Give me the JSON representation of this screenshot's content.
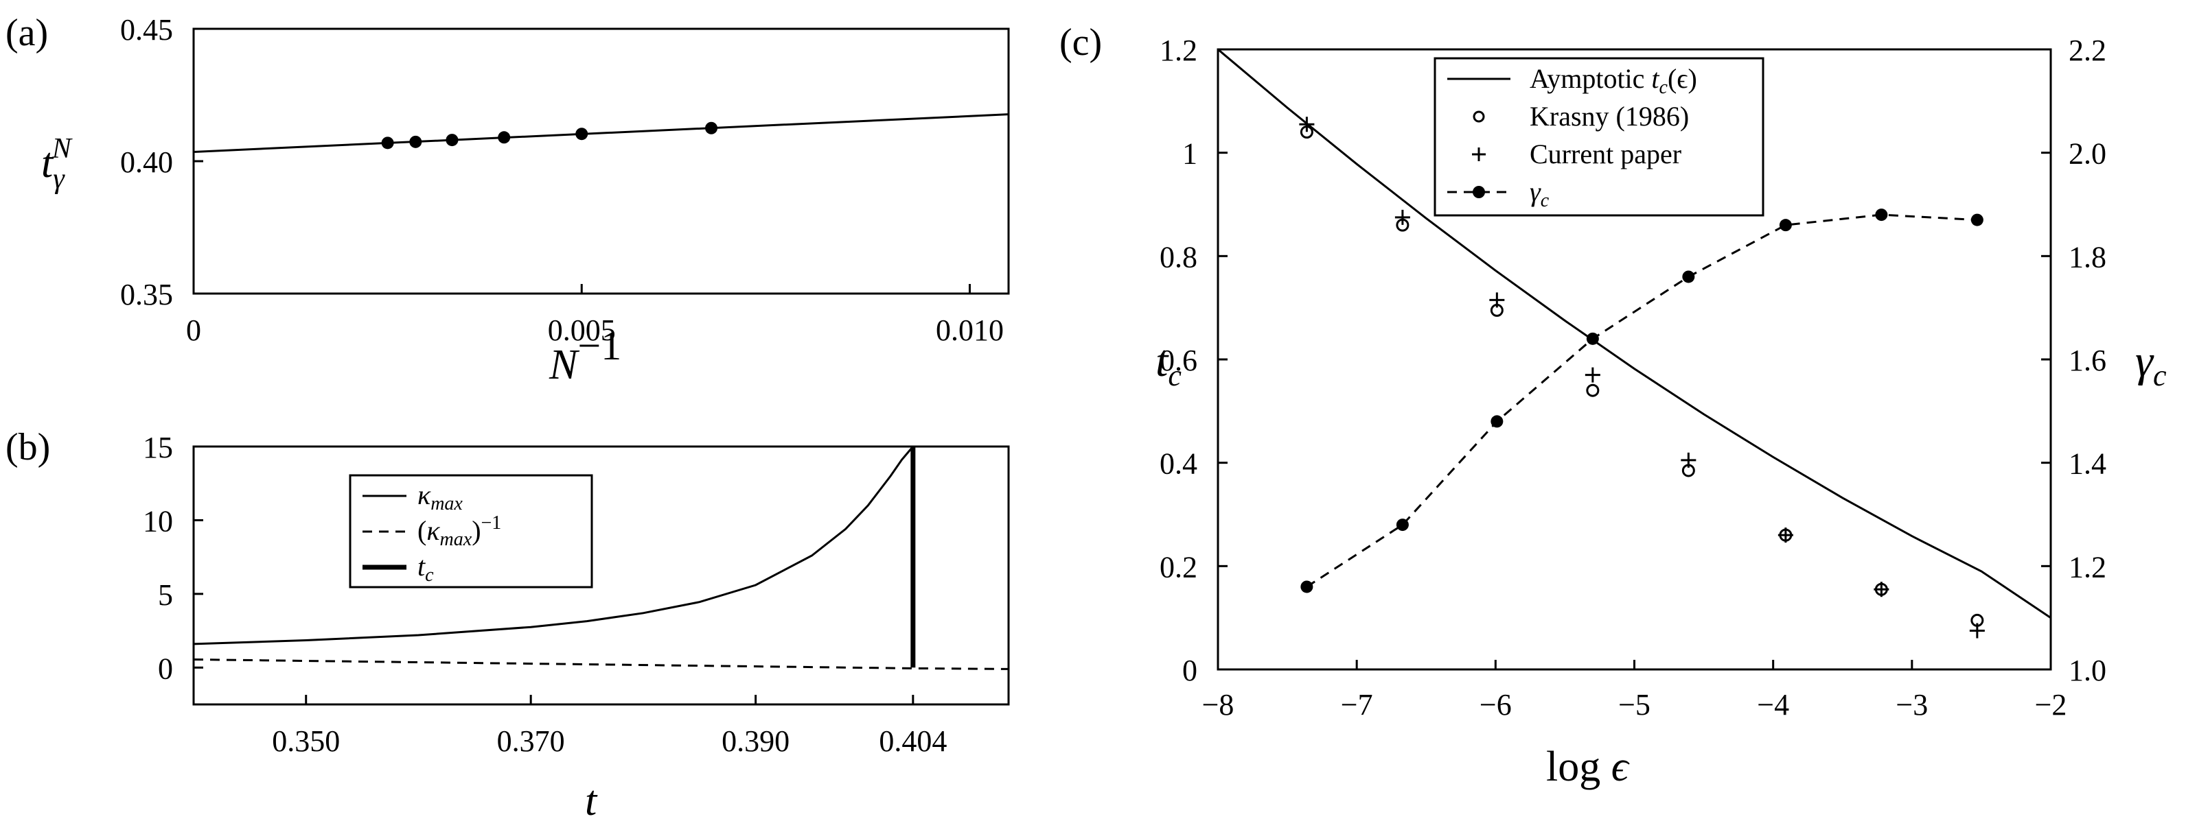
{
  "chart_data": [
    {
      "id": "a",
      "type": "scatter",
      "panel_label": "(a)",
      "xlabel": "N^{-1}",
      "ylabel": "t_γ^N",
      "xlim": [
        0,
        0.0105
      ],
      "ylim": [
        0.35,
        0.45
      ],
      "xticks": [
        {
          "value": 0,
          "label": "0"
        },
        {
          "value": 0.005,
          "label": "0.005"
        },
        {
          "value": 0.01,
          "label": "0.010"
        }
      ],
      "yticks": [
        {
          "value": 0.35,
          "label": "0.35"
        },
        {
          "value": 0.4,
          "label": "0.40"
        },
        {
          "value": 0.45,
          "label": "0.45"
        }
      ],
      "fit_line": {
        "x": [
          0,
          0.0105
        ],
        "y": [
          0.4035,
          0.4177
        ]
      },
      "points": {
        "x": [
          0.0025,
          0.00286,
          0.00333,
          0.004,
          0.005,
          0.00667
        ],
        "y": [
          0.4069,
          0.4073,
          0.408,
          0.409,
          0.4103,
          0.4125
        ]
      }
    },
    {
      "id": "b",
      "type": "line",
      "panel_label": "(b)",
      "xlabel": "t",
      "xlim": [
        0.34,
        0.4125
      ],
      "ylim": [
        -2.5,
        15
      ],
      "xticks": [
        {
          "value": 0.35,
          "label": "0.350"
        },
        {
          "value": 0.37,
          "label": "0.370"
        },
        {
          "value": 0.39,
          "label": "0.390"
        },
        {
          "value": 0.404,
          "label": "0.404"
        }
      ],
      "yticks": [
        {
          "value": 0,
          "label": "0"
        },
        {
          "value": 5,
          "label": "5"
        },
        {
          "value": 10,
          "label": "10"
        },
        {
          "value": 15,
          "label": "15"
        }
      ],
      "legend": {
        "position": "top-center",
        "entries": [
          {
            "label": "κ_max",
            "style": "solid"
          },
          {
            "label": "(κ_max)^{-1}",
            "style": "dashed"
          },
          {
            "label": "t_c",
            "style": "thick"
          }
        ]
      },
      "series": [
        {
          "name": "κ_max",
          "x": [
            0.34,
            0.35,
            0.36,
            0.37,
            0.375,
            0.38,
            0.385,
            0.39,
            0.395,
            0.398,
            0.4,
            0.402,
            0.403,
            0.404
          ],
          "y": [
            1.6,
            1.85,
            2.2,
            2.75,
            3.15,
            3.7,
            4.45,
            5.6,
            7.6,
            9.4,
            11.0,
            13.0,
            14.1,
            15.0
          ]
        },
        {
          "name": "(κ_max)^{-1}",
          "x": [
            0.34,
            0.404,
            0.4125
          ],
          "y": [
            0.55,
            -0.05,
            -0.1
          ]
        }
      ],
      "vline": {
        "name": "t_c",
        "x": 0.404,
        "y": [
          0,
          15
        ]
      }
    },
    {
      "id": "c",
      "type": "line",
      "panel_label": "(c)",
      "xlabel": "log ϵ",
      "ylabel": "t_c",
      "ylabel_right": "γ_c",
      "xlim": [
        -8,
        -2
      ],
      "ylim": [
        0,
        1.2
      ],
      "ylim_right": [
        1.0,
        2.2
      ],
      "xticks": [
        {
          "value": -8,
          "label": "−8"
        },
        {
          "value": -7,
          "label": "−7"
        },
        {
          "value": -6,
          "label": "−6"
        },
        {
          "value": -5,
          "label": "−5"
        },
        {
          "value": -4,
          "label": "−4"
        },
        {
          "value": -3,
          "label": "−3"
        },
        {
          "value": -2,
          "label": "−2"
        }
      ],
      "yticks": [
        {
          "value": 0,
          "label": "0"
        },
        {
          "value": 0.2,
          "label": "0.2"
        },
        {
          "value": 0.4,
          "label": "0.4"
        },
        {
          "value": 0.6,
          "label": "0.6"
        },
        {
          "value": 0.8,
          "label": "0.8"
        },
        {
          "value": 1.0,
          "label": "1"
        },
        {
          "value": 1.2,
          "label": "1.2"
        }
      ],
      "yticks_right": [
        {
          "value": 1.0,
          "label": "1.0"
        },
        {
          "value": 1.2,
          "label": "1.2"
        },
        {
          "value": 1.4,
          "label": "1.4"
        },
        {
          "value": 1.6,
          "label": "1.6"
        },
        {
          "value": 1.8,
          "label": "1.8"
        },
        {
          "value": 2.0,
          "label": "2.0"
        },
        {
          "value": 2.2,
          "label": "2.2"
        }
      ],
      "legend": {
        "position": "top-center",
        "entries": [
          {
            "label": "Aymptotic t_c(ϵ)",
            "style": "solid"
          },
          {
            "label": "Krasny (1986)",
            "style": "open-circle"
          },
          {
            "label": "Current paper",
            "style": "plus"
          },
          {
            "label": "γ_c",
            "style": "dashed-dot"
          }
        ]
      },
      "series": [
        {
          "name": "Aymptotic t_c(ϵ)",
          "axis": "left",
          "x": [
            -8,
            -7.5,
            -7,
            -6.5,
            -6,
            -5.5,
            -5,
            -4.5,
            -4,
            -3.5,
            -3,
            -2.5,
            -2
          ],
          "y": [
            1.2,
            1.087,
            0.978,
            0.873,
            0.772,
            0.675,
            0.582,
            0.494,
            0.411,
            0.332,
            0.258,
            0.19,
            0.1
          ]
        },
        {
          "name": "Krasny (1986)",
          "axis": "left",
          "x": [
            -7.36,
            -6.67,
            -5.99,
            -5.3,
            -4.61,
            -3.91,
            -3.22,
            -2.53
          ],
          "y": [
            1.04,
            0.86,
            0.695,
            0.54,
            0.385,
            0.26,
            0.155,
            0.095
          ]
        },
        {
          "name": "Current paper",
          "axis": "left",
          "x": [
            -7.36,
            -6.67,
            -5.99,
            -5.3,
            -4.61,
            -3.91,
            -3.22,
            -2.53
          ],
          "y": [
            1.055,
            0.875,
            0.715,
            0.57,
            0.405,
            0.26,
            0.155,
            0.075
          ]
        },
        {
          "name": "γ_c",
          "axis": "right",
          "x": [
            -7.36,
            -6.67,
            -5.99,
            -5.3,
            -4.61,
            -3.91,
            -3.22,
            -2.53
          ],
          "y": [
            1.16,
            1.28,
            1.48,
            1.64,
            1.76,
            1.86,
            1.88,
            1.87
          ]
        }
      ]
    }
  ]
}
